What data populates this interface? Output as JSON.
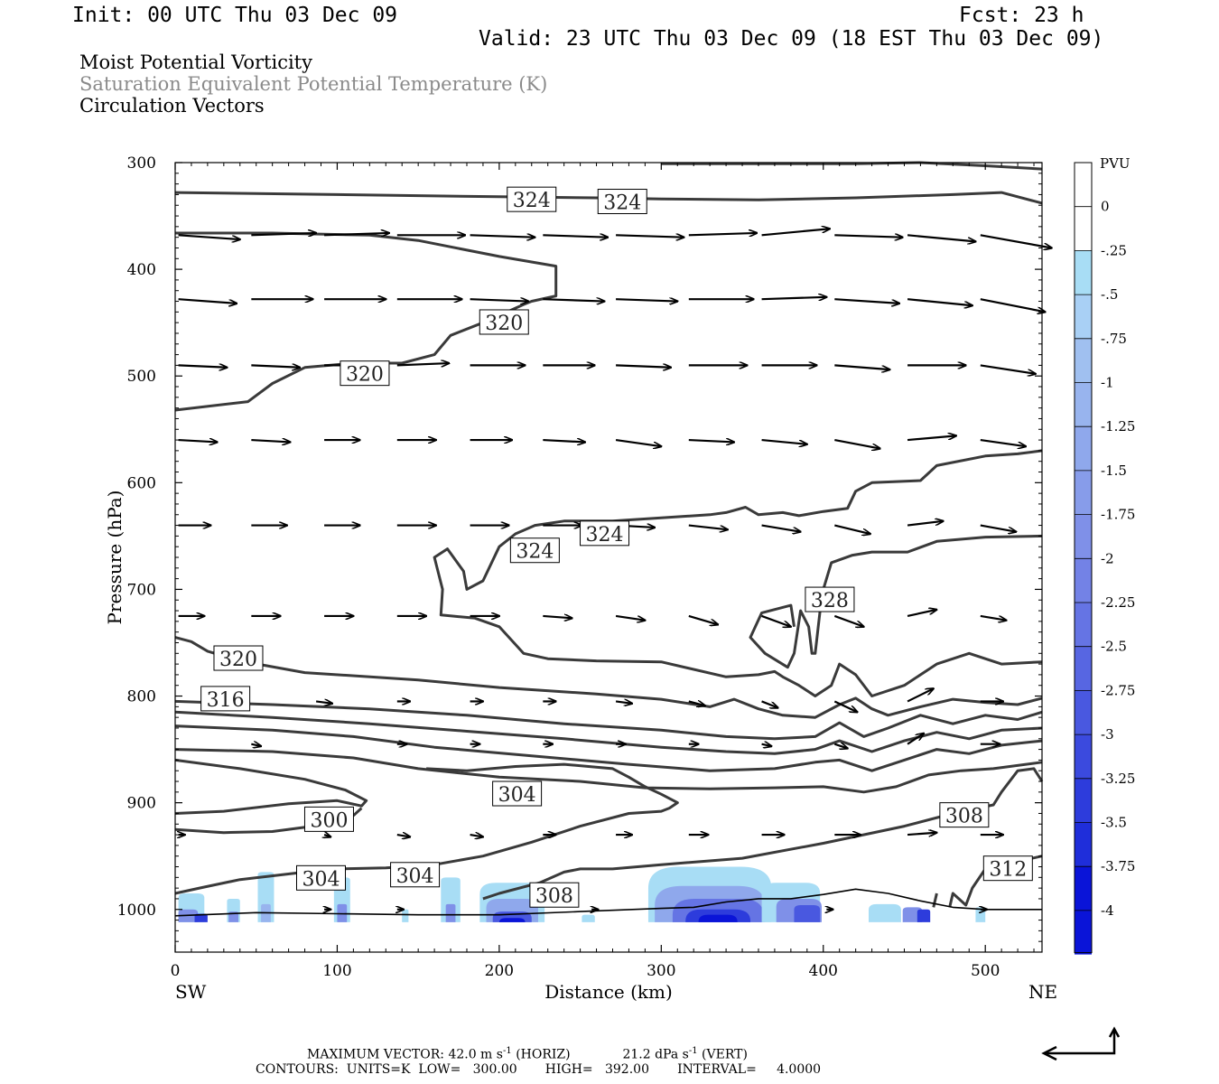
{
  "header": {
    "init": "Init: 00 UTC Thu 03 Dec 09",
    "fcst": "Fcst:   23 h",
    "valid": "Valid: 23 UTC Thu 03 Dec 09 (18 EST Thu 03 Dec 09)"
  },
  "fields": [
    "Moist Potential Vorticity",
    "Saturation Equivalent Potential Temperature (K)",
    "Circulation Vectors"
  ],
  "footer": {
    "max_vector_label": "MAXIMUM VECTOR:",
    "max_vector_horiz": "42.0 m s",
    "max_vector_horiz_suffix": "(HORIZ)",
    "max_vector_vert": "21.2 dPa s",
    "max_vector_vert_suffix": "(VERT)",
    "exponent": "-1",
    "contours": "CONTOURS:  UNITS=K  LOW=   300.00       HIGH=   392.00       INTERVAL=     4.0000"
  },
  "chart_data": {
    "type": "cross-section",
    "xlabel": "Distance (km)",
    "ylabel": "Pressure (hPa)",
    "x_end_labels": [
      "SW",
      "NE"
    ],
    "xlim": [
      0,
      535
    ],
    "ylim": [
      1040,
      300
    ],
    "xticks": [
      0,
      100,
      200,
      300,
      400,
      500
    ],
    "yticks": [
      300,
      400,
      500,
      600,
      700,
      800,
      900,
      1000
    ],
    "colorbar": {
      "unit": "PVU",
      "levels": [
        "0",
        "-.25",
        "-.5",
        "-.75",
        "-1",
        "-1.25",
        "-1.5",
        "-1.75",
        "-2",
        "-2.25",
        "-2.5",
        "-2.75",
        "-3",
        "-3.25",
        "-3.5",
        "-3.75",
        "-4"
      ],
      "colors": [
        "#ffffff",
        "#ffffff",
        "#a8ddf5",
        "#a9d0f5",
        "#a0c0f0",
        "#98b4ee",
        "#8fa8ec",
        "#879cea",
        "#7f90e8",
        "#7382e6",
        "#6574e4",
        "#5766e2",
        "#4958e0",
        "#3b4ade",
        "#2d3cdc",
        "#1f2eda",
        "#0a14d8"
      ]
    },
    "contour_labels": [
      {
        "text": "324",
        "x": 220,
        "p": 334
      },
      {
        "text": "324",
        "x": 276,
        "p": 336
      },
      {
        "text": "320",
        "x": 203,
        "p": 449
      },
      {
        "text": "320",
        "x": 117,
        "p": 497
      },
      {
        "text": "324",
        "x": 222,
        "p": 663
      },
      {
        "text": "324",
        "x": 265,
        "p": 647
      },
      {
        "text": "328",
        "x": 404,
        "p": 709
      },
      {
        "text": "320",
        "x": 39,
        "p": 764
      },
      {
        "text": "316",
        "x": 31,
        "p": 802
      },
      {
        "text": "304",
        "x": 211,
        "p": 891
      },
      {
        "text": "300",
        "x": 95,
        "p": 915
      },
      {
        "text": "308",
        "x": 487,
        "p": 911
      },
      {
        "text": "312",
        "x": 514,
        "p": 961
      },
      {
        "text": "304",
        "x": 90,
        "p": 970
      },
      {
        "text": "304",
        "x": 148,
        "p": 967
      },
      {
        "text": "308",
        "x": 234,
        "p": 986
      }
    ]
  }
}
